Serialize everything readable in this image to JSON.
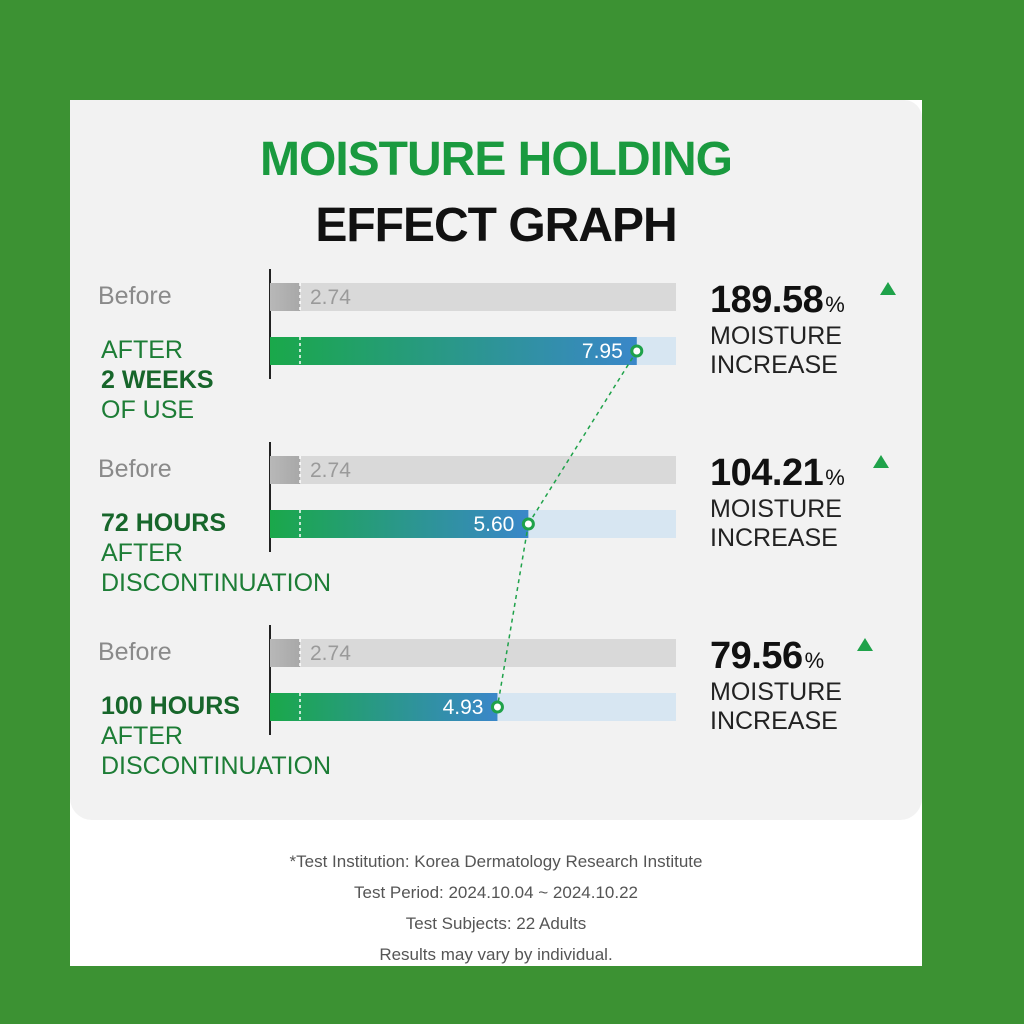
{
  "header": {
    "title_line1": "MOISTURE HOLDING",
    "title_line2": "EFFECT GRAPH"
  },
  "colors": {
    "frame": "#3c9233",
    "title_green": "#1a9a3f",
    "bar_gradient_start": "#1aa84a",
    "bar_gradient_end": "#3a87c9",
    "before_bar": "#d9d9d9",
    "bar_track": "#d7e6f2"
  },
  "chart_data": {
    "type": "bar",
    "orientation": "horizontal",
    "unit": "",
    "before_label": "Before",
    "groups": [
      {
        "label_lines": [
          {
            "text": "AFTER",
            "bold": false
          },
          {
            "text": "2 WEEKS",
            "bold": true
          },
          {
            "text": "OF USE",
            "bold": false
          }
        ],
        "before": 2.74,
        "after": 7.95,
        "increase": "189.58",
        "increase_unit": "%",
        "increase_text1": "MOISTURE",
        "increase_text2": "INCREASE"
      },
      {
        "label_lines": [
          {
            "text": "72 HOURS",
            "bold": true
          },
          {
            "text": "AFTER",
            "bold": false
          },
          {
            "text": "DISCONTINUATION",
            "bold": false
          }
        ],
        "before": 2.74,
        "after": 5.6,
        "increase": "104.21",
        "increase_unit": "%",
        "increase_text1": "MOISTURE",
        "increase_text2": "INCREASE"
      },
      {
        "label_lines": [
          {
            "text": "100 HOURS",
            "bold": true
          },
          {
            "text": "AFTER",
            "bold": false
          },
          {
            "text": "DISCONTINUATION",
            "bold": false
          }
        ],
        "before": 2.74,
        "after": 4.93,
        "increase": "79.56",
        "increase_unit": "%",
        "increase_text1": "MOISTURE",
        "increase_text2": "INCREASE"
      }
    ],
    "value_range": [
      0,
      8.8
    ],
    "connector_line": "dashed"
  },
  "footnotes": [
    "*Test Institution: Korea Dermatology Research Institute",
    "Test Period: 2024.10.04 ~ 2024.10.22",
    "Test Subjects: 22 Adults",
    "Results may vary by individual."
  ]
}
